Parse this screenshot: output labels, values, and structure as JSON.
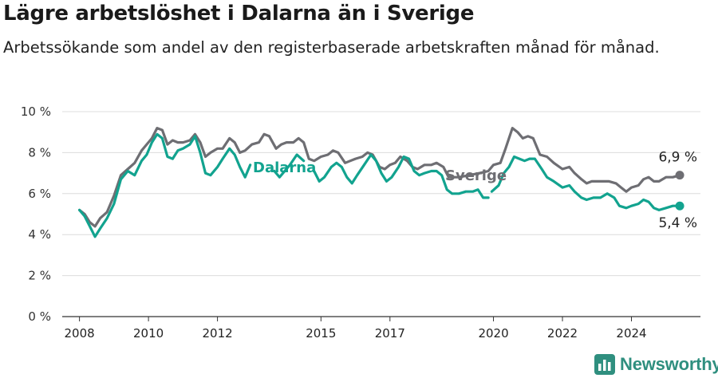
{
  "title": "Lägre arbetslöshet i Dalarna än i Sverige",
  "subtitle": "Arbetssökande som andel av den registerbaserade arbetskraften månad för månad.",
  "brand": {
    "name": "Newsworthy",
    "icon": "newsworthy-logo-icon",
    "color": "#2f8f7f"
  },
  "chart_data": {
    "type": "line",
    "ylim": [
      0,
      10
    ],
    "y_ticks": [
      {
        "value": 0,
        "label": "0 %"
      },
      {
        "value": 2,
        "label": "2 %"
      },
      {
        "value": 4,
        "label": "4 %"
      },
      {
        "value": 6,
        "label": "6 %"
      },
      {
        "value": 8,
        "label": "8 %"
      },
      {
        "value": 10,
        "label": "10 %"
      }
    ],
    "x_ticks": [
      {
        "value": 2008,
        "label": "2008"
      },
      {
        "value": 2010,
        "label": "2010"
      },
      {
        "value": 2012,
        "label": "2012"
      },
      {
        "value": 2015,
        "label": "2015"
      },
      {
        "value": 2017,
        "label": "2017"
      },
      {
        "value": 2020,
        "label": "2020"
      },
      {
        "value": 2022,
        "label": "2022"
      },
      {
        "value": 2024,
        "label": "2024"
      }
    ],
    "grid": true,
    "series": [
      {
        "name": "Sverige",
        "color": "#6e6e73",
        "end_label": "6,9 %",
        "points": [
          [
            2008.0,
            5.2
          ],
          [
            2008.15,
            5.0
          ],
          [
            2008.3,
            4.6
          ],
          [
            2008.45,
            4.4
          ],
          [
            2008.6,
            4.8
          ],
          [
            2008.8,
            5.1
          ],
          [
            2009.0,
            5.9
          ],
          [
            2009.2,
            6.9
          ],
          [
            2009.4,
            7.2
          ],
          [
            2009.6,
            7.5
          ],
          [
            2009.8,
            8.1
          ],
          [
            2009.95,
            8.4
          ],
          [
            2010.1,
            8.7
          ],
          [
            2010.25,
            9.2
          ],
          [
            2010.4,
            9.1
          ],
          [
            2010.55,
            8.4
          ],
          [
            2010.7,
            8.6
          ],
          [
            2010.85,
            8.5
          ],
          [
            2011.0,
            8.5
          ],
          [
            2011.2,
            8.6
          ],
          [
            2011.35,
            8.9
          ],
          [
            2011.5,
            8.5
          ],
          [
            2011.65,
            7.8
          ],
          [
            2011.8,
            8.0
          ],
          [
            2012.0,
            8.2
          ],
          [
            2012.15,
            8.2
          ],
          [
            2012.35,
            8.7
          ],
          [
            2012.5,
            8.5
          ],
          [
            2012.65,
            8.0
          ],
          [
            2012.8,
            8.1
          ],
          [
            2013.0,
            8.4
          ],
          [
            2013.2,
            8.5
          ],
          [
            2013.35,
            8.9
          ],
          [
            2013.5,
            8.8
          ],
          [
            2013.7,
            8.2
          ],
          [
            2013.85,
            8.4
          ],
          [
            2014.0,
            8.5
          ],
          [
            2014.2,
            8.5
          ],
          [
            2014.35,
            8.7
          ],
          [
            2014.5,
            8.5
          ],
          [
            2014.65,
            7.7
          ],
          [
            2014.8,
            7.6
          ],
          [
            2015.0,
            7.8
          ],
          [
            2015.2,
            7.9
          ],
          [
            2015.35,
            8.1
          ],
          [
            2015.5,
            8.0
          ],
          [
            2015.7,
            7.5
          ],
          [
            2015.85,
            7.6
          ],
          [
            2016.0,
            7.7
          ],
          [
            2016.2,
            7.8
          ],
          [
            2016.35,
            8.0
          ],
          [
            2016.5,
            7.9
          ],
          [
            2016.7,
            7.3
          ],
          [
            2016.85,
            7.2
          ],
          [
            2017.0,
            7.4
          ],
          [
            2017.15,
            7.5
          ],
          [
            2017.3,
            7.8
          ],
          [
            2017.5,
            7.6
          ],
          [
            2017.65,
            7.3
          ],
          [
            2017.8,
            7.2
          ],
          [
            2018.0,
            7.4
          ],
          [
            2018.2,
            7.4
          ],
          [
            2018.35,
            7.5
          ],
          [
            2018.55,
            7.3
          ],
          [
            2018.7,
            6.8
          ],
          [
            2019.0,
            6.8
          ],
          [
            2019.3,
            6.9
          ],
          [
            2019.6,
            7.0
          ],
          [
            2019.85,
            7.1
          ],
          [
            2020.0,
            7.4
          ],
          [
            2020.2,
            7.5
          ],
          [
            2020.35,
            8.2
          ],
          [
            2020.55,
            9.2
          ],
          [
            2020.7,
            9.0
          ],
          [
            2020.85,
            8.7
          ],
          [
            2021.0,
            8.8
          ],
          [
            2021.15,
            8.7
          ],
          [
            2021.35,
            7.9
          ],
          [
            2021.55,
            7.8
          ],
          [
            2021.75,
            7.5
          ],
          [
            2022.0,
            7.2
          ],
          [
            2022.2,
            7.3
          ],
          [
            2022.35,
            7.0
          ],
          [
            2022.55,
            6.7
          ],
          [
            2022.7,
            6.5
          ],
          [
            2022.85,
            6.6
          ],
          [
            2023.0,
            6.6
          ],
          [
            2023.2,
            6.6
          ],
          [
            2023.35,
            6.6
          ],
          [
            2023.55,
            6.5
          ],
          [
            2023.7,
            6.3
          ],
          [
            2023.85,
            6.1
          ],
          [
            2024.0,
            6.3
          ],
          [
            2024.2,
            6.4
          ],
          [
            2024.35,
            6.7
          ],
          [
            2024.5,
            6.8
          ],
          [
            2024.65,
            6.6
          ],
          [
            2024.8,
            6.6
          ],
          [
            2025.0,
            6.8
          ],
          [
            2025.2,
            6.8
          ],
          [
            2025.4,
            6.9
          ]
        ]
      },
      {
        "name": "Dalarna",
        "color": "#12a38f",
        "end_label": "5,4 %",
        "points": [
          [
            2008.0,
            5.2
          ],
          [
            2008.15,
            4.9
          ],
          [
            2008.3,
            4.4
          ],
          [
            2008.45,
            3.9
          ],
          [
            2008.6,
            4.3
          ],
          [
            2008.8,
            4.8
          ],
          [
            2009.0,
            5.5
          ],
          [
            2009.2,
            6.7
          ],
          [
            2009.4,
            7.1
          ],
          [
            2009.6,
            6.9
          ],
          [
            2009.8,
            7.6
          ],
          [
            2009.95,
            7.9
          ],
          [
            2010.1,
            8.5
          ],
          [
            2010.25,
            8.9
          ],
          [
            2010.4,
            8.7
          ],
          [
            2010.55,
            7.8
          ],
          [
            2010.7,
            7.7
          ],
          [
            2010.85,
            8.1
          ],
          [
            2011.0,
            8.2
          ],
          [
            2011.2,
            8.4
          ],
          [
            2011.35,
            8.8
          ],
          [
            2011.5,
            8.0
          ],
          [
            2011.65,
            7.0
          ],
          [
            2011.8,
            6.9
          ],
          [
            2012.0,
            7.3
          ],
          [
            2012.15,
            7.7
          ],
          [
            2012.35,
            8.2
          ],
          [
            2012.5,
            7.9
          ],
          [
            2012.65,
            7.3
          ],
          [
            2012.8,
            6.8
          ],
          [
            2012.95,
            7.4
          ]
        ],
        "segments": [
          [
            [
              2013.65,
              7.1
            ],
            [
              2013.8,
              6.8
            ],
            [
              2013.95,
              7.1
            ],
            [
              2014.1,
              7.4
            ],
            [
              2014.3,
              7.9
            ],
            [
              2014.5,
              7.6
            ]
          ],
          [
            [
              2014.8,
              7.1
            ],
            [
              2014.95,
              6.6
            ],
            [
              2015.1,
              6.8
            ],
            [
              2015.3,
              7.3
            ],
            [
              2015.45,
              7.5
            ],
            [
              2015.6,
              7.3
            ],
            [
              2015.75,
              6.8
            ],
            [
              2015.9,
              6.5
            ],
            [
              2016.05,
              6.9
            ],
            [
              2016.25,
              7.4
            ],
            [
              2016.45,
              7.9
            ],
            [
              2016.6,
              7.6
            ],
            [
              2016.75,
              7.0
            ],
            [
              2016.9,
              6.6
            ],
            [
              2017.05,
              6.8
            ],
            [
              2017.25,
              7.3
            ],
            [
              2017.4,
              7.8
            ],
            [
              2017.55,
              7.7
            ],
            [
              2017.7,
              7.1
            ],
            [
              2017.85,
              6.9
            ],
            [
              2018.0,
              7.0
            ],
            [
              2018.2,
              7.1
            ],
            [
              2018.35,
              7.1
            ],
            [
              2018.5,
              6.9
            ],
            [
              2018.65,
              6.2
            ],
            [
              2018.8,
              6.0
            ],
            [
              2019.0,
              6.0
            ],
            [
              2019.2,
              6.1
            ],
            [
              2019.4,
              6.1
            ],
            [
              2019.55,
              6.2
            ],
            [
              2019.7,
              5.8
            ],
            [
              2019.85,
              5.8
            ]
          ],
          [
            [
              2019.95,
              6.1
            ],
            [
              2020.15,
              6.4
            ],
            [
              2020.3,
              7.0
            ],
            [
              2020.45,
              7.3
            ],
            [
              2020.6,
              7.8
            ],
            [
              2020.75,
              7.7
            ],
            [
              2020.9,
              7.6
            ],
            [
              2021.05,
              7.7
            ],
            [
              2021.2,
              7.7
            ],
            [
              2021.4,
              7.2
            ],
            [
              2021.55,
              6.8
            ],
            [
              2021.75,
              6.6
            ],
            [
              2022.0,
              6.3
            ],
            [
              2022.2,
              6.4
            ],
            [
              2022.35,
              6.1
            ],
            [
              2022.55,
              5.8
            ],
            [
              2022.7,
              5.7
            ],
            [
              2022.9,
              5.8
            ],
            [
              2023.1,
              5.8
            ],
            [
              2023.3,
              6.0
            ],
            [
              2023.5,
              5.8
            ],
            [
              2023.65,
              5.4
            ],
            [
              2023.85,
              5.3
            ],
            [
              2024.0,
              5.4
            ],
            [
              2024.2,
              5.5
            ],
            [
              2024.35,
              5.7
            ],
            [
              2024.5,
              5.6
            ],
            [
              2024.65,
              5.3
            ],
            [
              2024.8,
              5.2
            ],
            [
              2025.0,
              5.3
            ],
            [
              2025.2,
              5.4
            ],
            [
              2025.4,
              5.4
            ]
          ]
        ]
      }
    ]
  }
}
